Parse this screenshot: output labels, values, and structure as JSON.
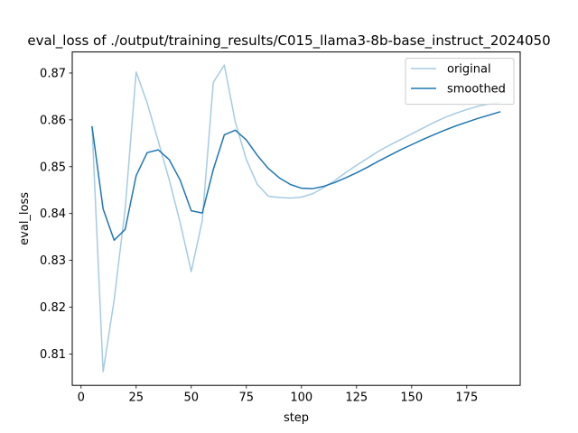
{
  "chart_data": {
    "type": "line",
    "title": "eval_loss of ./output/training_results/C015_llama3-8b-base_instruct_2024050",
    "xlabel": "step",
    "ylabel": "eval_loss",
    "xlim": [
      -4,
      199.25
    ],
    "ylim": [
      0.8033,
      0.8745
    ],
    "xticks": [
      0,
      25,
      50,
      75,
      100,
      125,
      150,
      175
    ],
    "yticks": [
      0.81,
      0.82,
      0.83,
      0.84,
      0.85,
      0.86,
      0.87
    ],
    "ytick_labels": [
      "0.81",
      "0.82",
      "0.83",
      "0.84",
      "0.85",
      "0.86",
      "0.87"
    ],
    "grid": false,
    "legend": "top-right",
    "series": [
      {
        "name": "original",
        "color": "#a6cbe3",
        "x": [
          5,
          10,
          15,
          20,
          25,
          30,
          35,
          40,
          45,
          50,
          55,
          60,
          65,
          70,
          75,
          80,
          85,
          90,
          95,
          100,
          105,
          110,
          115,
          120,
          125,
          130,
          135,
          140,
          145,
          150,
          155,
          160,
          165,
          170,
          175,
          180,
          185,
          190
        ],
        "values": [
          0.8585,
          0.8062,
          0.8215,
          0.841,
          0.8702,
          0.8636,
          0.8555,
          0.8472,
          0.838,
          0.8276,
          0.8385,
          0.868,
          0.8717,
          0.8595,
          0.8515,
          0.8462,
          0.8437,
          0.8434,
          0.8433,
          0.8435,
          0.8442,
          0.8455,
          0.847,
          0.8487,
          0.8503,
          0.8518,
          0.8533,
          0.8546,
          0.8558,
          0.857,
          0.8582,
          0.8594,
          0.8605,
          0.8614,
          0.8622,
          0.8629,
          0.8634,
          0.8637
        ]
      },
      {
        "name": "smoothed",
        "color": "#1f77b4",
        "x": [
          5,
          10,
          15,
          20,
          25,
          30,
          35,
          40,
          45,
          50,
          55,
          60,
          65,
          70,
          75,
          80,
          85,
          90,
          95,
          100,
          105,
          110,
          115,
          120,
          125,
          130,
          135,
          140,
          145,
          150,
          155,
          160,
          165,
          170,
          175,
          180,
          185,
          190
        ],
        "values": [
          0.8585,
          0.841,
          0.8343,
          0.8366,
          0.8481,
          0.853,
          0.8536,
          0.8515,
          0.8471,
          0.8406,
          0.8401,
          0.8494,
          0.8568,
          0.8578,
          0.8557,
          0.8524,
          0.8496,
          0.8476,
          0.8462,
          0.8454,
          0.8453,
          0.8458,
          0.8466,
          0.8476,
          0.8487,
          0.8499,
          0.8512,
          0.8524,
          0.8536,
          0.8547,
          0.8558,
          0.8568,
          0.8578,
          0.8587,
          0.8595,
          0.8603,
          0.861,
          0.8617
        ]
      }
    ]
  }
}
